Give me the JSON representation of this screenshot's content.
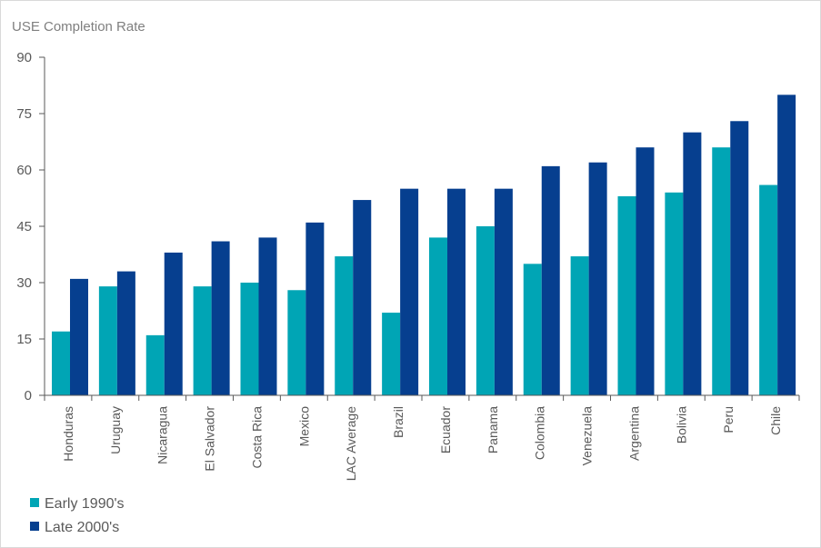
{
  "chart_data": {
    "type": "bar",
    "title": "USE Completion Rate",
    "ylim": [
      0,
      90
    ],
    "yticks": [
      "0",
      "15",
      "30",
      "45",
      "60",
      "75",
      "90"
    ],
    "grid": false,
    "legend_position": "bottom-left",
    "categories": [
      "Honduras",
      "Uruguay",
      "Nicaragua",
      "El Salvador",
      "Costa Rica",
      "Mexico",
      "LAC Average",
      "Brazil",
      "Ecuador",
      "Panama",
      "Colombia",
      "Venezuela",
      "Argentina",
      "Bolivia",
      "Peru",
      "Chile"
    ],
    "series": [
      {
        "name": "Early 1990's",
        "color": "#00a5b5",
        "values": [
          17,
          29,
          16,
          29,
          30,
          28,
          37,
          22,
          42,
          45,
          35,
          37,
          53,
          54,
          66,
          56
        ]
      },
      {
        "name": "Late 2000's",
        "color": "#063f8f",
        "values": [
          31,
          33,
          38,
          41,
          42,
          46,
          52,
          55,
          55,
          55,
          61,
          62,
          66,
          70,
          73,
          80
        ]
      }
    ]
  }
}
